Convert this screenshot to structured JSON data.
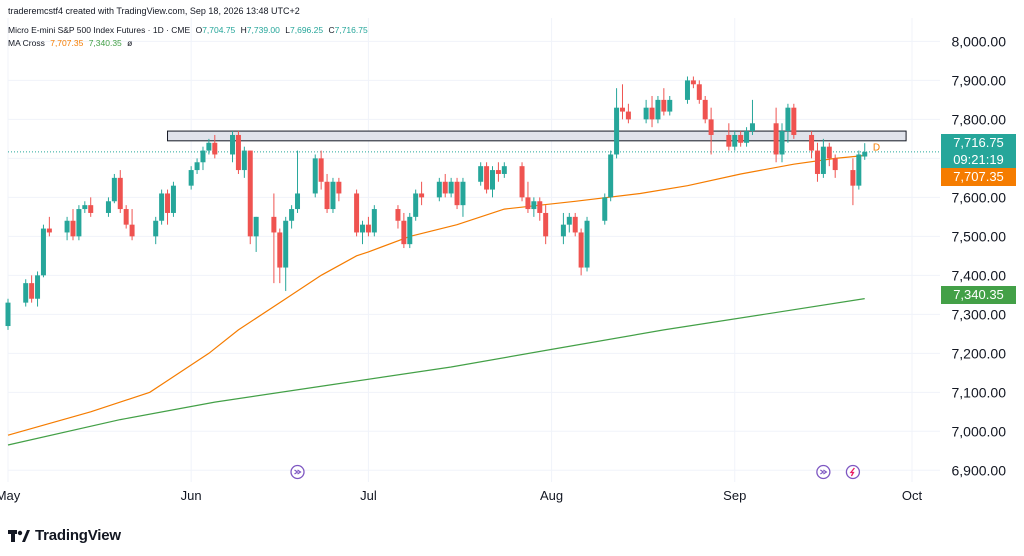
{
  "header": {
    "creator": "traderemcstf4 created with TradingView.com, Sep 18, 2026 13:48 UTC+2",
    "symbol": "Micro E-mini S&P 500 Index Futures · 1D · CME",
    "ohlc": {
      "o_label": "O",
      "o": "7,704.75",
      "h_label": "H",
      "h": "7,739.00",
      "l_label": "L",
      "l": "7,696.25",
      "c_label": "C",
      "c": "7,716.75"
    },
    "indicator": {
      "name": "MA Cross",
      "fast": "7,707.35",
      "slow": "7,340.35",
      "settings_glyph": "ø"
    }
  },
  "price_badge": {
    "price": "7,716.75",
    "countdown": "09:21:19"
  },
  "ma_badges": {
    "fast": "7,707.35",
    "slow": "7,340.35"
  },
  "brand": {
    "name": "TradingView"
  },
  "colors": {
    "up": "#26a69a",
    "down": "#ef5350",
    "ma_fast": "#f57c00",
    "ma_slow": "#43a047",
    "grid": "#f0f3fa",
    "zone_fill": "#e0e3eb",
    "zone_border": "#131722",
    "event": "#7e57c2"
  },
  "chart_data": {
    "type": "candlestick",
    "title": "",
    "xlabel": "",
    "ylabel": "",
    "ylim": [
      6870,
      8060
    ],
    "y_ticks": [
      "8,000.00",
      "7,900.00",
      "7,800.00",
      "7,700.00",
      "7,600.00",
      "7,500.00",
      "7,400.00",
      "7,300.00",
      "7,200.00",
      "7,100.00",
      "7,000.00",
      "6,900.00"
    ],
    "y_tick_values": [
      8000,
      7900,
      7800,
      7700,
      7600,
      7500,
      7400,
      7300,
      7200,
      7100,
      7000,
      6900
    ],
    "x_tick_labels": [
      "May",
      "Jun",
      "Jul",
      "Aug",
      "Sep",
      "Oct"
    ],
    "x_tick_dates": [
      "2026-05-01",
      "2026-06-01",
      "2026-07-01",
      "2026-08-01",
      "2026-09-01",
      "2026-10-01"
    ],
    "x_range": [
      "2026-05-01",
      "2026-10-01"
    ],
    "grid": true,
    "resistance_zone": {
      "from_date": "2026-05-28",
      "to_date": "2026-09-30",
      "low": 7745,
      "high": 7770
    },
    "last_price_line": 7716.75,
    "series": [
      {
        "name": "Micro E-mini S&P 500 Index Futures",
        "ohlc": [
          [
            "2026-05-01",
            7270,
            7340,
            7260,
            7330
          ],
          [
            "2026-05-04",
            7330,
            7390,
            7320,
            7380
          ],
          [
            "2026-05-05",
            7380,
            7400,
            7330,
            7340
          ],
          [
            "2026-05-06",
            7340,
            7410,
            7320,
            7400
          ],
          [
            "2026-05-07",
            7400,
            7530,
            7395,
            7520
          ],
          [
            "2026-05-08",
            7520,
            7550,
            7500,
            7510
          ],
          [
            "2026-05-11",
            7510,
            7550,
            7490,
            7540
          ],
          [
            "2026-05-12",
            7540,
            7570,
            7490,
            7500
          ],
          [
            "2026-05-13",
            7500,
            7580,
            7490,
            7570
          ],
          [
            "2026-05-14",
            7570,
            7590,
            7560,
            7580
          ],
          [
            "2026-05-15",
            7580,
            7600,
            7550,
            7560
          ],
          [
            "2026-05-18",
            7560,
            7600,
            7550,
            7590
          ],
          [
            "2026-05-19",
            7590,
            7660,
            7585,
            7650
          ],
          [
            "2026-05-20",
            7650,
            7670,
            7560,
            7570
          ],
          [
            "2026-05-21",
            7570,
            7580,
            7520,
            7530
          ],
          [
            "2026-05-22",
            7530,
            7570,
            7490,
            7500
          ],
          [
            "2026-05-26",
            7500,
            7550,
            7480,
            7540
          ],
          [
            "2026-05-27",
            7540,
            7620,
            7530,
            7610
          ],
          [
            "2026-05-28",
            7610,
            7620,
            7530,
            7560
          ],
          [
            "2026-05-29",
            7560,
            7640,
            7550,
            7630
          ],
          [
            "2026-06-01",
            7630,
            7680,
            7620,
            7670
          ],
          [
            "2026-06-02",
            7670,
            7700,
            7660,
            7690
          ],
          [
            "2026-06-03",
            7690,
            7730,
            7670,
            7720
          ],
          [
            "2026-06-04",
            7720,
            7750,
            7710,
            7740
          ],
          [
            "2026-06-05",
            7740,
            7760,
            7700,
            7710
          ],
          [
            "2026-06-08",
            7710,
            7770,
            7690,
            7760
          ],
          [
            "2026-06-09",
            7760,
            7770,
            7660,
            7670
          ],
          [
            "2026-06-10",
            7670,
            7730,
            7650,
            7720
          ],
          [
            "2026-06-11",
            7720,
            7720,
            7480,
            7500
          ],
          [
            "2026-06-12",
            7500,
            7550,
            7460,
            7550
          ],
          [
            "2026-06-15",
            7550,
            7610,
            7380,
            7510
          ],
          [
            "2026-06-16",
            7510,
            7520,
            7380,
            7420
          ],
          [
            "2026-06-17",
            7420,
            7550,
            7360,
            7540
          ],
          [
            "2026-06-18",
            7540,
            7580,
            7520,
            7570
          ],
          [
            "2026-06-19",
            7570,
            7720,
            7560,
            7610
          ],
          [
            "2026-06-22",
            7610,
            7710,
            7600,
            7700
          ],
          [
            "2026-06-23",
            7700,
            7720,
            7620,
            7640
          ],
          [
            "2026-06-24",
            7640,
            7660,
            7560,
            7570
          ],
          [
            "2026-06-25",
            7570,
            7650,
            7560,
            7640
          ],
          [
            "2026-06-26",
            7640,
            7650,
            7590,
            7610
          ],
          [
            "2026-06-29",
            7610,
            7620,
            7500,
            7510
          ],
          [
            "2026-06-30",
            7510,
            7540,
            7480,
            7530
          ],
          [
            "2026-07-01",
            7530,
            7550,
            7500,
            7510
          ],
          [
            "2026-07-02",
            7510,
            7580,
            7500,
            7570
          ],
          [
            "2026-07-06",
            7570,
            7580,
            7520,
            7540
          ],
          [
            "2026-07-07",
            7540,
            7560,
            7470,
            7480
          ],
          [
            "2026-07-08",
            7480,
            7560,
            7470,
            7550
          ],
          [
            "2026-07-09",
            7550,
            7620,
            7540,
            7610
          ],
          [
            "2026-07-10",
            7610,
            7640,
            7580,
            7600
          ],
          [
            "2026-07-13",
            7600,
            7650,
            7590,
            7640
          ],
          [
            "2026-07-14",
            7640,
            7660,
            7600,
            7610
          ],
          [
            "2026-07-15",
            7610,
            7650,
            7600,
            7640
          ],
          [
            "2026-07-16",
            7640,
            7650,
            7570,
            7580
          ],
          [
            "2026-07-17",
            7580,
            7650,
            7550,
            7640
          ],
          [
            "2026-07-20",
            7640,
            7690,
            7630,
            7680
          ],
          [
            "2026-07-21",
            7680,
            7690,
            7610,
            7620
          ],
          [
            "2026-07-22",
            7620,
            7680,
            7600,
            7670
          ],
          [
            "2026-07-23",
            7670,
            7690,
            7640,
            7660
          ],
          [
            "2026-07-24",
            7660,
            7690,
            7650,
            7680
          ],
          [
            "2026-07-27",
            7680,
            7690,
            7590,
            7600
          ],
          [
            "2026-07-28",
            7600,
            7640,
            7560,
            7570
          ],
          [
            "2026-07-29",
            7570,
            7600,
            7550,
            7590
          ],
          [
            "2026-07-30",
            7590,
            7600,
            7540,
            7560
          ],
          [
            "2026-07-31",
            7560,
            7580,
            7480,
            7500
          ],
          [
            "2026-08-03",
            7500,
            7560,
            7480,
            7530
          ],
          [
            "2026-08-04",
            7530,
            7560,
            7510,
            7550
          ],
          [
            "2026-08-05",
            7550,
            7560,
            7500,
            7510
          ],
          [
            "2026-08-06",
            7510,
            7520,
            7400,
            7420
          ],
          [
            "2026-08-07",
            7420,
            7550,
            7410,
            7540
          ],
          [
            "2026-08-10",
            7540,
            7610,
            7530,
            7600
          ],
          [
            "2026-08-11",
            7600,
            7720,
            7590,
            7710
          ],
          [
            "2026-08-12",
            7710,
            7880,
            7700,
            7830
          ],
          [
            "2026-08-13",
            7830,
            7890,
            7800,
            7820
          ],
          [
            "2026-08-14",
            7820,
            7840,
            7790,
            7800
          ],
          [
            "2026-08-17",
            7800,
            7850,
            7790,
            7830
          ],
          [
            "2026-08-18",
            7830,
            7860,
            7780,
            7800
          ],
          [
            "2026-08-19",
            7800,
            7860,
            7790,
            7850
          ],
          [
            "2026-08-20",
            7850,
            7880,
            7810,
            7820
          ],
          [
            "2026-08-21",
            7820,
            7860,
            7810,
            7850
          ],
          [
            "2026-08-24",
            7850,
            7910,
            7840,
            7900
          ],
          [
            "2026-08-25",
            7900,
            7910,
            7880,
            7890
          ],
          [
            "2026-08-26",
            7890,
            7900,
            7840,
            7850
          ],
          [
            "2026-08-27",
            7850,
            7860,
            7790,
            7800
          ],
          [
            "2026-08-28",
            7800,
            7830,
            7710,
            7760
          ],
          [
            "2026-08-31",
            7760,
            7790,
            7720,
            7730
          ],
          [
            "2026-09-01",
            7730,
            7770,
            7720,
            7760
          ],
          [
            "2026-09-02",
            7760,
            7770,
            7730,
            7740
          ],
          [
            "2026-09-03",
            7740,
            7780,
            7730,
            7770
          ],
          [
            "2026-09-04",
            7770,
            7850,
            7760,
            7790
          ],
          [
            "2026-09-08",
            7790,
            7830,
            7690,
            7710
          ],
          [
            "2026-09-09",
            7710,
            7790,
            7690,
            7770
          ],
          [
            "2026-09-10",
            7770,
            7840,
            7740,
            7830
          ],
          [
            "2026-09-11",
            7830,
            7840,
            7750,
            7760
          ],
          [
            "2026-09-14",
            7760,
            7770,
            7700,
            7720
          ],
          [
            "2026-09-15",
            7720,
            7740,
            7640,
            7660
          ],
          [
            "2026-09-16",
            7660,
            7750,
            7650,
            7730
          ],
          [
            "2026-09-17",
            7730,
            7740,
            7680,
            7700
          ],
          [
            "2026-09-18",
            7700,
            7710,
            7650,
            7670
          ],
          [
            "2026-09-21",
            7670,
            7700,
            7580,
            7630
          ],
          [
            "2026-09-22",
            7630,
            7720,
            7620,
            7710
          ],
          [
            "2026-09-23",
            7704.75,
            7739,
            7696.25,
            7716.75
          ]
        ]
      },
      {
        "name": "MA Cross fast",
        "points": [
          [
            "2026-05-01",
            6990
          ],
          [
            "2026-05-15",
            7050
          ],
          [
            "2026-05-25",
            7100
          ],
          [
            "2026-06-04",
            7200
          ],
          [
            "2026-06-09",
            7260
          ],
          [
            "2026-06-17",
            7340
          ],
          [
            "2026-06-23",
            7400
          ],
          [
            "2026-06-29",
            7450
          ],
          [
            "2026-07-01",
            7460
          ],
          [
            "2026-07-08",
            7500
          ],
          [
            "2026-07-16",
            7530
          ],
          [
            "2026-07-24",
            7570
          ],
          [
            "2026-08-05",
            7590
          ],
          [
            "2026-08-16",
            7610
          ],
          [
            "2026-08-24",
            7630
          ],
          [
            "2026-09-02",
            7660
          ],
          [
            "2026-09-11",
            7685
          ],
          [
            "2026-09-18",
            7700
          ],
          [
            "2026-09-23",
            7707.35
          ]
        ]
      },
      {
        "name": "MA Cross slow",
        "points": [
          [
            "2026-05-01",
            6965
          ],
          [
            "2026-05-20",
            7030
          ],
          [
            "2026-06-05",
            7075
          ],
          [
            "2026-06-25",
            7120
          ],
          [
            "2026-07-15",
            7165
          ],
          [
            "2026-08-01",
            7210
          ],
          [
            "2026-08-20",
            7260
          ],
          [
            "2026-09-06",
            7300
          ],
          [
            "2026-09-23",
            7340.35
          ]
        ]
      }
    ],
    "event_markers": [
      {
        "date": "2026-06-19",
        "kind": "arrow"
      },
      {
        "date": "2026-09-16",
        "kind": "arrow"
      },
      {
        "date": "2026-09-21",
        "kind": "lightning"
      }
    ],
    "label_marker": {
      "date": "2026-09-25",
      "price": 7730,
      "text": "D"
    }
  }
}
